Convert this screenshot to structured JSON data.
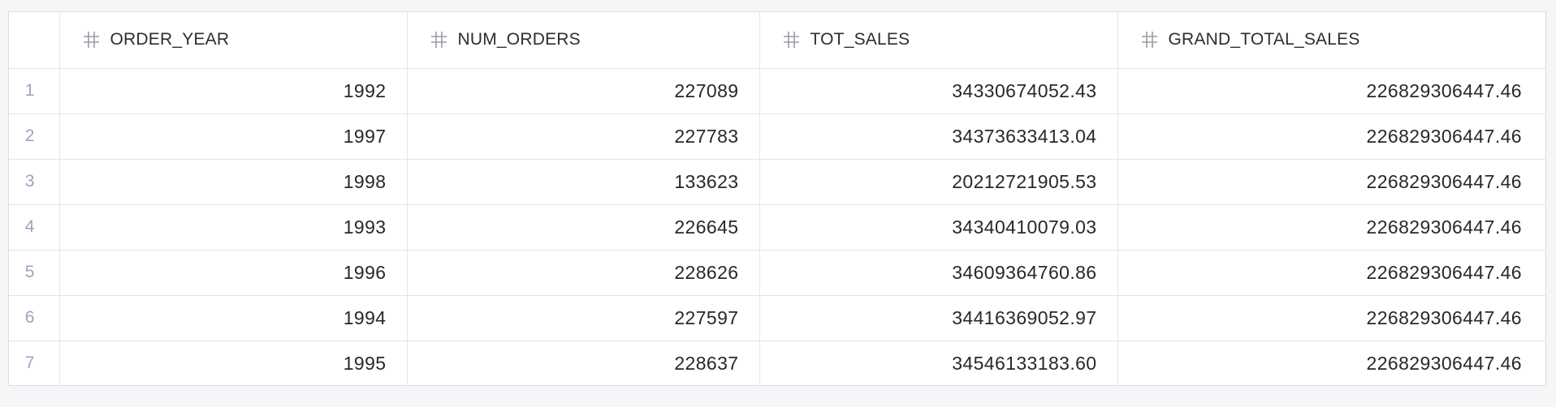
{
  "grid": {
    "columns": [
      {
        "name": "ORDER_YEAR",
        "icon": "hash-icon"
      },
      {
        "name": "NUM_ORDERS",
        "icon": "hash-icon"
      },
      {
        "name": "TOT_SALES",
        "icon": "hash-icon"
      },
      {
        "name": "GRAND_TOTAL_SALES",
        "icon": "hash-icon"
      }
    ],
    "rows": [
      {
        "index": "1",
        "cells": [
          "1992",
          "227089",
          "34330674052.43",
          "226829306447.46"
        ]
      },
      {
        "index": "2",
        "cells": [
          "1997",
          "227783",
          "34373633413.04",
          "226829306447.46"
        ]
      },
      {
        "index": "3",
        "cells": [
          "1998",
          "133623",
          "20212721905.53",
          "226829306447.46"
        ]
      },
      {
        "index": "4",
        "cells": [
          "1993",
          "226645",
          "34340410079.03",
          "226829306447.46"
        ]
      },
      {
        "index": "5",
        "cells": [
          "1996",
          "228626",
          "34609364760.86",
          "226829306447.46"
        ]
      },
      {
        "index": "6",
        "cells": [
          "1994",
          "227597",
          "34416369052.97",
          "226829306447.46"
        ]
      },
      {
        "index": "7",
        "cells": [
          "1995",
          "228637",
          "34546133183.60",
          "226829306447.46"
        ]
      }
    ]
  },
  "colors": {
    "background": "#f6f6f8",
    "grid_border": "#e3e4ea",
    "row_index_text": "#9aa6bb",
    "cell_text": "#26282e",
    "icon": "#9a9ca6"
  }
}
